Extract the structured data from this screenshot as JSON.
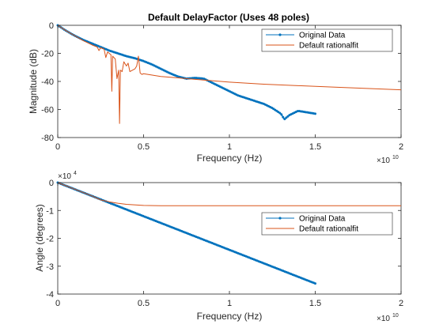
{
  "colors": {
    "original": "#0072BD",
    "fit": "#D95319",
    "axes": "#262626"
  },
  "chart_data": [
    {
      "type": "line",
      "title": "Default DelayFactor (Uses 48 poles)",
      "xlabel": "Frequency (Hz)",
      "ylabel": "Magnitude (dB)",
      "x_exponent_base": "×10",
      "x_exponent_power": "10",
      "xlim": [
        0,
        20000000000
      ],
      "ylim": [
        -80,
        0
      ],
      "xticks": [
        0,
        5000000000,
        10000000000,
        15000000000,
        20000000000
      ],
      "xtick_labels": [
        "0",
        "0.5",
        "1",
        "1.5",
        "2"
      ],
      "yticks": [
        0,
        -20,
        -40,
        -60,
        -80
      ],
      "ytick_labels": [
        "0",
        "-20",
        "-40",
        "-60",
        "-80"
      ],
      "legend_position": "top-right",
      "series": [
        {
          "name": "Original Data",
          "marker": "dot",
          "x": [
            0,
            250000000,
            500000000,
            1000000000,
            1500000000,
            2000000000,
            2500000000,
            3000000000,
            3500000000,
            4000000000,
            4500000000,
            5000000000,
            5500000000,
            6000000000,
            6500000000,
            7000000000,
            7500000000,
            8000000000,
            8500000000,
            9000000000,
            9500000000,
            10000000000,
            10500000000,
            11000000000,
            11500000000,
            12000000000,
            12500000000,
            13000000000,
            13200000000,
            13500000000,
            14000000000,
            14500000000,
            15000000000
          ],
          "y": [
            0,
            -2,
            -4,
            -7.5,
            -10.5,
            -13,
            -15.5,
            -18,
            -20,
            -22,
            -23.5,
            -25.5,
            -28,
            -31,
            -34,
            -36.5,
            -38,
            -37.5,
            -38,
            -41,
            -44,
            -47,
            -50,
            -52,
            -54,
            -56,
            -59,
            -63,
            -67,
            -64,
            -61,
            -62,
            -63
          ]
        },
        {
          "name": "Default rationalfit",
          "x": [
            0,
            500000000,
            1000000000,
            1500000000,
            2000000000,
            2300000000,
            2400000000,
            2500000000,
            2700000000,
            2800000000,
            2900000000,
            3100000000,
            3150000000,
            3200000000,
            3350000000,
            3450000000,
            3550000000,
            3600000000,
            3650000000,
            3750000000,
            3850000000,
            4000000000,
            4100000000,
            4200000000,
            4500000000,
            4600000000,
            4700000000,
            4800000000,
            4900000000,
            5000000000,
            5500000000,
            6000000000,
            7000000000,
            8000000000,
            9000000000,
            10000000000,
            12000000000,
            14000000000,
            16000000000,
            18000000000,
            20000000000
          ],
          "y": [
            0,
            -4,
            -7.5,
            -11,
            -14,
            -15.5,
            -18,
            -16,
            -17,
            -23,
            -19,
            -21,
            -47,
            -22,
            -24,
            -38,
            -32,
            -70,
            -32,
            -33,
            -26,
            -29,
            -27,
            -33,
            -31,
            -29,
            -22,
            -34,
            -35,
            -34.5,
            -35.5,
            -36.5,
            -37.5,
            -38.5,
            -39.5,
            -40.5,
            -42,
            -43,
            -44,
            -45,
            -46
          ]
        }
      ]
    },
    {
      "type": "line",
      "title": "",
      "xlabel": "Frequency (Hz)",
      "ylabel": "Angle (degrees)",
      "x_exponent_base": "×10",
      "x_exponent_power": "10",
      "y_exponent_base": "×10",
      "y_exponent_power": "4",
      "xlim": [
        0,
        20000000000
      ],
      "ylim": [
        -40000,
        0
      ],
      "xticks": [
        0,
        5000000000,
        10000000000,
        15000000000,
        20000000000
      ],
      "xtick_labels": [
        "0",
        "0.5",
        "1",
        "1.5",
        "2"
      ],
      "yticks": [
        0,
        -10000,
        -20000,
        -30000,
        -40000
      ],
      "ytick_labels": [
        "0",
        "-1",
        "-2",
        "-3",
        "-4"
      ],
      "legend_position": "middle-right",
      "series": [
        {
          "name": "Original Data",
          "marker": "dot",
          "x": [
            0,
            15000000000
          ],
          "y": [
            0,
            -36200
          ]
        },
        {
          "name": "Default rationalfit",
          "x": [
            0,
            1000000000,
            2000000000,
            2500000000,
            3000000000,
            3500000000,
            4000000000,
            5000000000,
            6000000000,
            8000000000,
            10000000000,
            15000000000,
            20000000000
          ],
          "y": [
            0,
            -2400,
            -4800,
            -6200,
            -6900,
            -7400,
            -7800,
            -8200,
            -8300,
            -8300,
            -8300,
            -8300,
            -8300
          ]
        }
      ]
    }
  ]
}
